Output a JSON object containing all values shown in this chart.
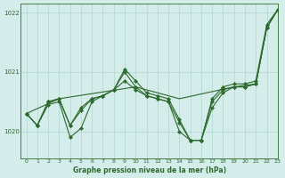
{
  "title": "Graphe pression niveau de la mer (hPa)",
  "bg_color": "#d4ecea",
  "grid_color": "#b0d8d0",
  "line_color": "#2d6a2d",
  "marker_color": "#2d6a2d",
  "xlim": [
    -0.5,
    23
  ],
  "ylim": [
    1019.55,
    1022.15
  ],
  "yticks": [
    1020,
    1021,
    1022
  ],
  "xticks": [
    0,
    1,
    2,
    3,
    4,
    5,
    6,
    7,
    8,
    9,
    10,
    11,
    12,
    13,
    14,
    15,
    16,
    17,
    18,
    19,
    20,
    21,
    22,
    23
  ],
  "series": [
    {
      "x": [
        0,
        1,
        2,
        3,
        4,
        5,
        6,
        7,
        8,
        9,
        10,
        11,
        12,
        13,
        14,
        15,
        16,
        17,
        18,
        19,
        20,
        21,
        22,
        23
      ],
      "y": [
        1020.3,
        1020.1,
        1020.45,
        1020.5,
        1019.9,
        1020.05,
        1020.5,
        1020.6,
        1020.7,
        1021.0,
        1020.75,
        1020.6,
        1020.55,
        1020.5,
        1020.0,
        1019.85,
        1019.85,
        1020.4,
        1020.65,
        1020.75,
        1020.75,
        1020.8,
        1021.75,
        1022.05
      ],
      "marker": true
    },
    {
      "x": [
        0,
        1,
        2,
        3,
        4,
        5,
        6,
        7,
        8,
        9,
        10,
        11,
        12,
        13,
        14,
        15,
        16,
        17,
        18,
        19,
        20,
        21,
        22,
        23
      ],
      "y": [
        1020.3,
        1020.1,
        1020.5,
        1020.55,
        1020.1,
        1020.35,
        1020.55,
        1020.6,
        1020.7,
        1021.05,
        1020.85,
        1020.65,
        1020.6,
        1020.55,
        1020.2,
        1019.85,
        1019.85,
        1020.55,
        1020.75,
        1020.8,
        1020.8,
        1020.85,
        1021.8,
        1022.05
      ],
      "marker": true
    },
    {
      "x": [
        0,
        1,
        2,
        3,
        4,
        5,
        6,
        7,
        8,
        9,
        10,
        11,
        12,
        13,
        14,
        15,
        16,
        17,
        18,
        19,
        20,
        21,
        22,
        23
      ],
      "y": [
        1020.3,
        1020.1,
        1020.5,
        1020.55,
        1020.1,
        1020.4,
        1020.55,
        1020.6,
        1020.7,
        1020.85,
        1020.7,
        1020.6,
        1020.55,
        1020.5,
        1020.15,
        1019.85,
        1019.85,
        1020.5,
        1020.7,
        1020.75,
        1020.75,
        1020.8,
        1021.75,
        1022.05
      ],
      "marker": true
    },
    {
      "x": [
        0,
        3,
        10,
        14,
        19,
        21,
        22,
        23
      ],
      "y": [
        1020.3,
        1020.55,
        1020.75,
        1020.55,
        1020.75,
        1020.8,
        1021.75,
        1022.05
      ],
      "marker": false
    }
  ]
}
